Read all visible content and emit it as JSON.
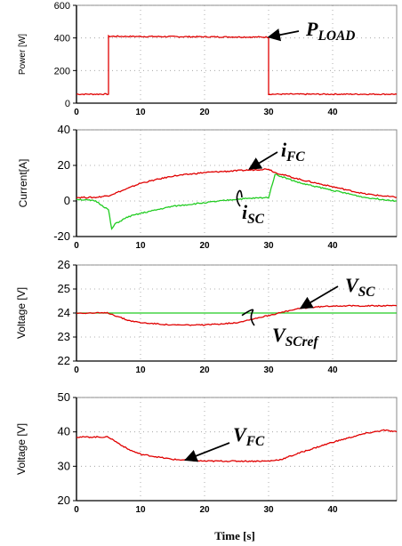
{
  "chart_data": [
    {
      "type": "line",
      "ylabel": "Power [W]",
      "xlim": [
        0,
        50
      ],
      "ylim": [
        0,
        600
      ],
      "xticks": [
        "0",
        "10",
        "20",
        "30",
        "40"
      ],
      "yticks": [
        "0",
        "200",
        "400",
        "600"
      ],
      "grid": true,
      "series": [
        {
          "name": "P_LOAD",
          "color": "#e00000",
          "x": [
            0,
            5,
            5,
            30,
            30,
            50
          ],
          "values": [
            55,
            55,
            410,
            405,
            55,
            55
          ]
        }
      ],
      "annotations": [
        {
          "text": "P",
          "sub": "LOAD",
          "arrow_to": [
            30,
            405
          ]
        }
      ]
    },
    {
      "type": "line",
      "ylabel": "Current[A]",
      "xlim": [
        0,
        50
      ],
      "ylim": [
        -20,
        40
      ],
      "xticks": [
        "0",
        "10",
        "20",
        "30",
        "40"
      ],
      "yticks": [
        "-20",
        "0",
        "20",
        "40"
      ],
      "grid": true,
      "series": [
        {
          "name": "i_FC",
          "color": "#e00000",
          "x": [
            0,
            3,
            5,
            8,
            10,
            15,
            20,
            25,
            30,
            31,
            35,
            40,
            45,
            50
          ],
          "values": [
            2,
            2,
            3,
            7,
            10,
            14,
            16,
            17,
            18,
            16,
            12,
            8,
            4,
            2
          ]
        },
        {
          "name": "i_SC",
          "color": "#22cc22",
          "x": [
            0,
            3,
            5,
            5.5,
            6,
            8,
            10,
            15,
            20,
            25,
            30,
            31,
            35,
            40,
            45,
            50
          ],
          "values": [
            1,
            0,
            -5,
            -16,
            -13,
            -9,
            -7,
            -3,
            -1,
            1,
            2,
            15,
            10,
            6,
            2,
            0
          ]
        }
      ],
      "annotations": [
        {
          "text": "i",
          "sub": "FC",
          "arrow_to": [
            27,
            18
          ]
        },
        {
          "text": "i",
          "sub": "SC",
          "arrow_to": [
            25,
            2
          ]
        }
      ]
    },
    {
      "type": "line",
      "ylabel": "Voltage [V]",
      "xlim": [
        0,
        50
      ],
      "ylim": [
        22,
        26
      ],
      "xticks": [
        "0",
        "10",
        "20",
        "30",
        "40"
      ],
      "yticks": [
        "22",
        "23",
        "24",
        "25",
        "26"
      ],
      "grid": true,
      "series": [
        {
          "name": "V_SCref",
          "color": "#22cc22",
          "x": [
            0,
            50
          ],
          "values": [
            24,
            24
          ]
        },
        {
          "name": "V_SC",
          "color": "#e00000",
          "x": [
            0,
            5,
            8,
            10,
            15,
            20,
            25,
            30,
            35,
            40,
            45,
            50
          ],
          "values": [
            24,
            24,
            23.7,
            23.6,
            23.5,
            23.5,
            23.6,
            23.9,
            24.2,
            24.3,
            24.3,
            24.3
          ]
        }
      ],
      "annotations": [
        {
          "text": "V",
          "sub": "SC",
          "arrow_to": [
            35,
            24.2
          ]
        },
        {
          "text": "V",
          "sub": "SCref",
          "arrow_to": [
            25,
            23.9
          ]
        }
      ]
    },
    {
      "type": "line",
      "ylabel": "Voltage [V]",
      "xlabel": "Time [s]",
      "xlim": [
        0,
        50
      ],
      "ylim": [
        20,
        50
      ],
      "xticks": [
        "0",
        "10",
        "20",
        "30",
        "40"
      ],
      "yticks": [
        "20",
        "30",
        "40",
        "50"
      ],
      "grid": true,
      "series": [
        {
          "name": "V_FC",
          "color": "#e00000",
          "x": [
            0,
            3,
            5,
            8,
            10,
            15,
            20,
            25,
            30,
            32,
            35,
            40,
            45,
            48,
            50
          ],
          "values": [
            38.5,
            38.5,
            38.5,
            35,
            33.5,
            32,
            31.5,
            31.5,
            31.5,
            32,
            34,
            37,
            39.5,
            40.5,
            40
          ]
        }
      ],
      "annotations": [
        {
          "text": "V",
          "sub": "FC",
          "arrow_to": [
            17,
            31.8
          ]
        }
      ]
    }
  ]
}
